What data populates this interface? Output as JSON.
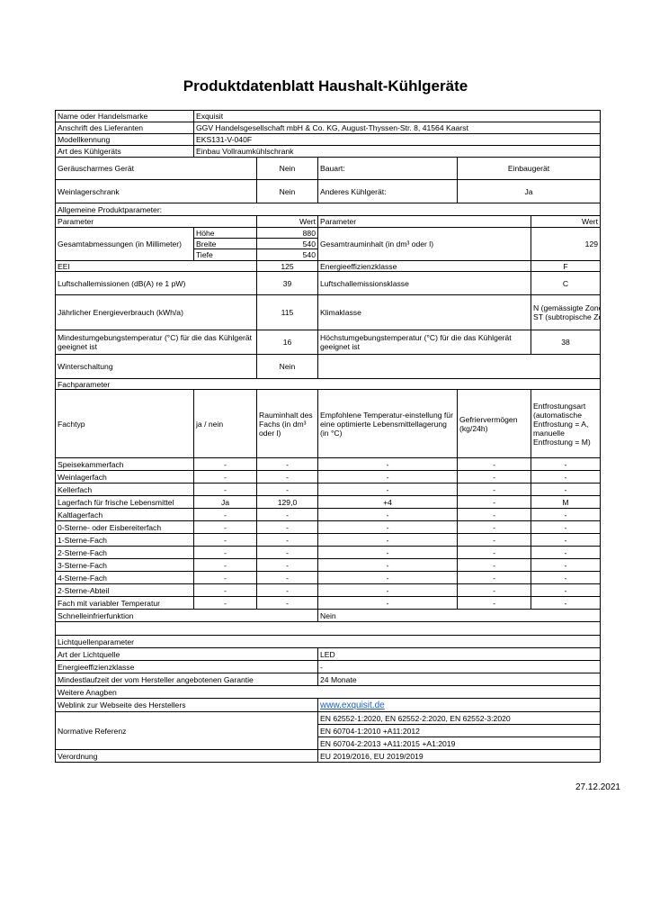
{
  "title": "Produktdatenblatt Haushalt-Kühlgeräte",
  "general": [
    {
      "label": "Name oder Handelsmarke",
      "value": "Exquisit"
    },
    {
      "label": "Anschrift des Lieferanten",
      "value": "GGV Handelsgesellschaft mbH & Co. KG, August-Thyssen-Str. 8, 41564 Kaarst"
    },
    {
      "label": "Modellkennung",
      "value": "EKS131-V-040F"
    },
    {
      "label": "Art des Kühlgeräts",
      "value": "Einbau Vollraumkühlschrank"
    }
  ],
  "type_rows": [
    {
      "label": "Geräuscharmes Gerät",
      "value": "Nein",
      "label2": "Bauart:",
      "value2": "Einbaugerät"
    },
    {
      "label": "Weinlagerschrank",
      "value": "Nein",
      "label2": "Anderes Kühlgerät:",
      "value2": "Ja"
    }
  ],
  "params": {
    "section": "Allgemeine Produktparameter:",
    "h_param": "Parameter",
    "h_value": "Wert",
    "dim_label": "Gesamtabmessungen (in Millimeter)",
    "dims": [
      {
        "label": "Höhe",
        "value": "880"
      },
      {
        "label": "Breite",
        "value": "540"
      },
      {
        "label": "Tiefe",
        "value": "540"
      }
    ],
    "volume_label": "Gesamtrauminhalt (in dm³ oder l)",
    "volume": "129",
    "rows": [
      {
        "label": "EEI",
        "value": "125",
        "label2": "Energieeffizienzklasse",
        "value2": "F"
      },
      {
        "label": "Luftschallemissionen (dB(A) re 1 pW)",
        "value": "39",
        "label2": "Luftschallemissionsklasse",
        "value2": "C"
      },
      {
        "label": "Jährlicher Energieverbrauch (kWh/a)",
        "value": "115",
        "label2": "Klimaklasse",
        "value2": "N (gemässigte Zone)",
        "value2b": "ST (subtropische Zone)"
      },
      {
        "label": "Mindestumgebungstemperatur (°C) für die das Kühlgerät geeignet ist",
        "value": "16",
        "label2": "Höchstumgebungstemperatur (°C) für die das Kühlgerät geeignet ist",
        "value2": "38"
      }
    ],
    "winter_label": "Winterschaltung",
    "winter": "Nein"
  },
  "fach": {
    "section": "Fachparameter",
    "headers": [
      "Fachtyp",
      "ja / nein",
      "Rauminhalt des Fachs (in dm³ oder l)",
      "Empfohlene Temperatur-einstellung für eine optimierte Lebensmittellagerung (in °C)",
      "Gefriervermögen (kg/24h)",
      "Entfrostungsart (automatische Entfrostung = A, manuelle Entfrostung = M)"
    ],
    "rows": [
      [
        "Speisekammerfach",
        "-",
        "-",
        "-",
        "-",
        "-"
      ],
      [
        "Weinlagerfach",
        "-",
        "-",
        "-",
        "-",
        "-"
      ],
      [
        "Kellerfach",
        "-",
        "-",
        "-",
        "-",
        "-"
      ],
      [
        "Lagerfach für frische Lebensmittel",
        "Ja",
        "129,0",
        "+4",
        "-",
        "M"
      ],
      [
        "Kaltlagerfach",
        "-",
        "-",
        "-",
        "-",
        "-"
      ],
      [
        "0-Sterne- oder Eisbereiterfach",
        "-",
        "-",
        "-",
        "-",
        "-"
      ],
      [
        "1-Sterne-Fach",
        "-",
        "-",
        "-",
        "-",
        "-"
      ],
      [
        "2-Sterne-Fach",
        "-",
        "-",
        "-",
        "-",
        "-"
      ],
      [
        "3-Sterne-Fach",
        "-",
        "-",
        "-",
        "-",
        "-"
      ],
      [
        "4-Sterne-Fach",
        "-",
        "-",
        "-",
        "-",
        "-"
      ],
      [
        "2-Sterne-Abteil",
        "-",
        "-",
        "-",
        "-",
        "-"
      ],
      [
        "Fach mit variabler Temperatur",
        "-",
        "-",
        "-",
        "-",
        "-"
      ]
    ],
    "quick_label": "Schnelleinfrierfunktion",
    "quick": "Nein"
  },
  "light": {
    "section": "Lichtquellenparameter",
    "rows": [
      {
        "label": "Art der Lichtquelle",
        "value": "LED"
      },
      {
        "label": "Energieeffizienzklasse",
        "value": "-"
      },
      {
        "label": "Mindestlaufzeit der vom Hersteller angebotenen Garantie",
        "value": "24 Monate"
      }
    ]
  },
  "more": {
    "section": "Weitere Anagben",
    "weblink_label": "Weblink zur Webseite des Herstellers",
    "weblink": "www.exquisit.de",
    "norm_label": "Normative Referenz",
    "norms": [
      "EN 62552-1:2020, EN 62552-2:2020, EN 62552-3:2020",
      "EN 60704-1:2010 +A11:2012",
      "EN 60704-2:2013 +A11:2015 +A1:2019"
    ],
    "reg_label": "Verordnung",
    "reg": "EU 2019/2016, EU 2019/2019"
  },
  "date": "27.12.2021",
  "colors": {
    "link": "#1f5fbf"
  }
}
